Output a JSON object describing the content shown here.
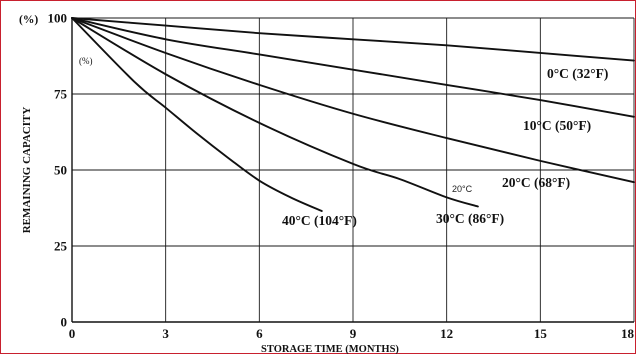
{
  "chart_data": {
    "type": "line",
    "title": "",
    "xlabel": "STORAGE TIME (MONTHS)",
    "ylabel": "REMAINING CAPACITY",
    "y_unit_label": "(%)",
    "y_unit_label_small": "(%)",
    "xlim": [
      0,
      18
    ],
    "ylim": [
      0,
      100
    ],
    "x_ticks": [
      "0",
      "3",
      "6",
      "9",
      "12",
      "15",
      "18"
    ],
    "y_ticks": [
      "0",
      "25",
      "50",
      "75",
      "100"
    ],
    "grid": true,
    "annotation": "20°C",
    "series": [
      {
        "name": "0°C (32°F)",
        "x": [
          0,
          3,
          6,
          9,
          12,
          15,
          18
        ],
        "y": [
          100,
          97.5,
          95,
          93,
          91,
          88.5,
          86
        ]
      },
      {
        "name": "10°C (50°F)",
        "x": [
          0,
          3,
          6,
          9,
          12,
          15,
          18
        ],
        "y": [
          100,
          93,
          88,
          83,
          78,
          73,
          67.5
        ]
      },
      {
        "name": "20°C (68°F)",
        "x": [
          0,
          3,
          6,
          9,
          12,
          15,
          18
        ],
        "y": [
          100,
          88.5,
          78,
          68.5,
          60.5,
          53,
          46
        ]
      },
      {
        "name": "30°C (86°F)",
        "x": [
          0,
          3,
          6,
          9,
          10.5,
          12,
          13
        ],
        "y": [
          100,
          81.5,
          65.5,
          52,
          47,
          41,
          38
        ]
      },
      {
        "name": "40°C (104°F)",
        "x": [
          0,
          2,
          3,
          4,
          5,
          6,
          7,
          8
        ],
        "y": [
          100,
          79,
          70.5,
          62,
          54,
          46.5,
          41,
          36.5
        ]
      }
    ],
    "series_labels": [
      {
        "celsius": "0°C",
        "fahrenheit": "(32°F)"
      },
      {
        "celsius": "10°C",
        "fahrenheit": "(50°F)"
      },
      {
        "celsius": "20°C",
        "fahrenheit": "(68°F)"
      },
      {
        "celsius": "30°C",
        "fahrenheit": "(86°F)"
      },
      {
        "celsius": "40°C",
        "fahrenheit": "(104°F)"
      }
    ]
  }
}
